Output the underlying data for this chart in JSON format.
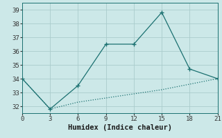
{
  "xlabel": "Humidex (Indice chaleur)",
  "line1_x": [
    0,
    3,
    6,
    9,
    12,
    15,
    18,
    21
  ],
  "line1_y": [
    34.0,
    31.8,
    33.5,
    36.5,
    36.5,
    38.8,
    34.7,
    34.0
  ],
  "line2_x": [
    0,
    3,
    6,
    9,
    12,
    15,
    18,
    21
  ],
  "line2_y": [
    34.0,
    31.8,
    32.3,
    32.6,
    32.9,
    33.2,
    33.6,
    34.0
  ],
  "line_color": "#1a7070",
  "bg_color": "#cce8e8",
  "grid_color": "#aacccc",
  "xlim": [
    0,
    21
  ],
  "ylim": [
    31.5,
    39.5
  ],
  "xticks": [
    0,
    3,
    6,
    9,
    12,
    15,
    18,
    21
  ],
  "yticks": [
    32,
    33,
    34,
    35,
    36,
    37,
    38,
    39
  ],
  "tick_fontsize": 6.5,
  "xlabel_fontsize": 7.5
}
